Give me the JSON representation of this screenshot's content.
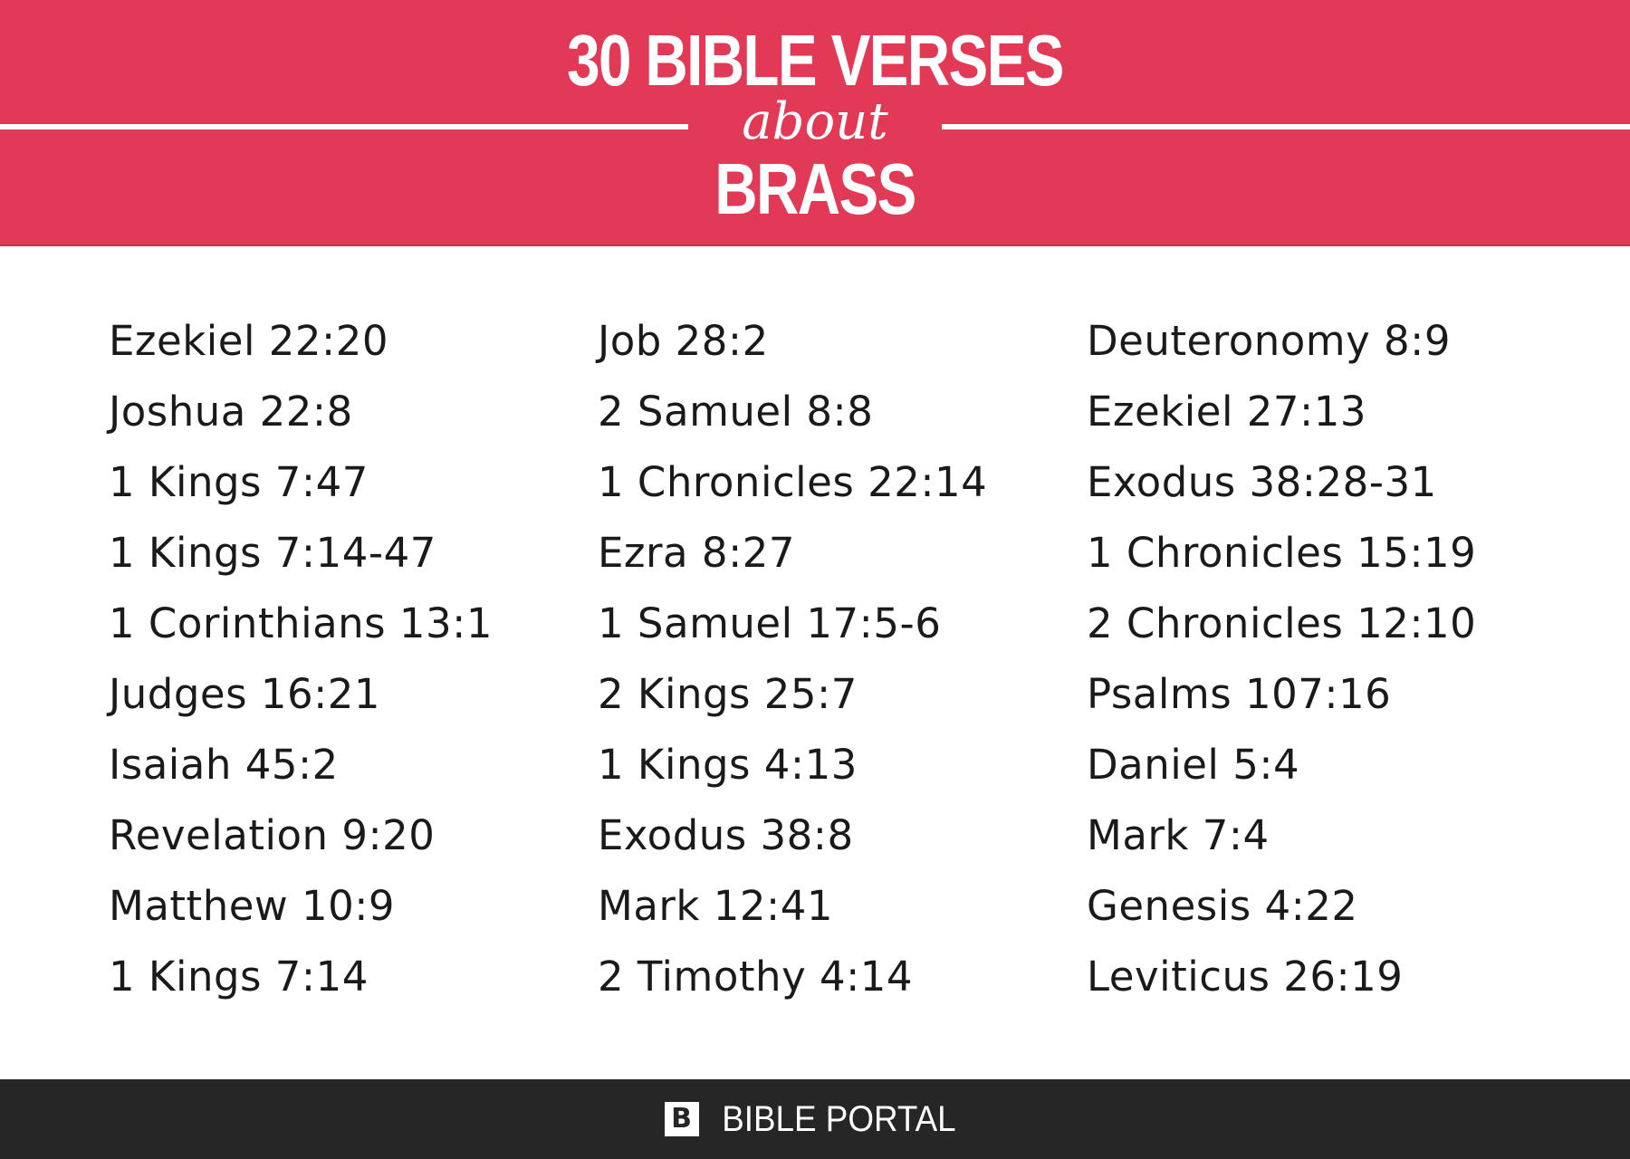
{
  "header": {
    "title_line1": "30 BIBLE VERSES",
    "title_about": "about",
    "title_line3": "BRASS",
    "background_color": "#e23a56"
  },
  "columns": [
    [
      "Ezekiel 22:20",
      "Joshua 22:8",
      "1 Kings 7:47",
      "1 Kings 7:14-47",
      "1 Corinthians 13:1",
      "Judges 16:21",
      "Isaiah 45:2",
      "Revelation 9:20",
      "Matthew 10:9",
      "1 Kings 7:14"
    ],
    [
      "Job 28:2",
      "2 Samuel 8:8",
      "1 Chronicles 22:14",
      "Ezra 8:27",
      "1 Samuel 17:5-6",
      "2 Kings 25:7",
      "1 Kings 4:13",
      "Exodus 38:8",
      "Mark 12:41",
      "2 Timothy 4:14"
    ],
    [
      "Deuteronomy 8:9",
      "Ezekiel 27:13",
      "Exodus 38:28-31",
      "1 Chronicles 15:19",
      "2 Chronicles 12:10",
      "Psalms 107:16",
      "Daniel 5:4",
      "Mark 7:4",
      "Genesis 4:22",
      "Leviticus 26:19"
    ]
  ],
  "footer": {
    "logo_glyph": "B",
    "logo_icon": "bible-portal-logo-icon",
    "brand": "BIBLE PORTAL",
    "background_color": "#262626"
  }
}
